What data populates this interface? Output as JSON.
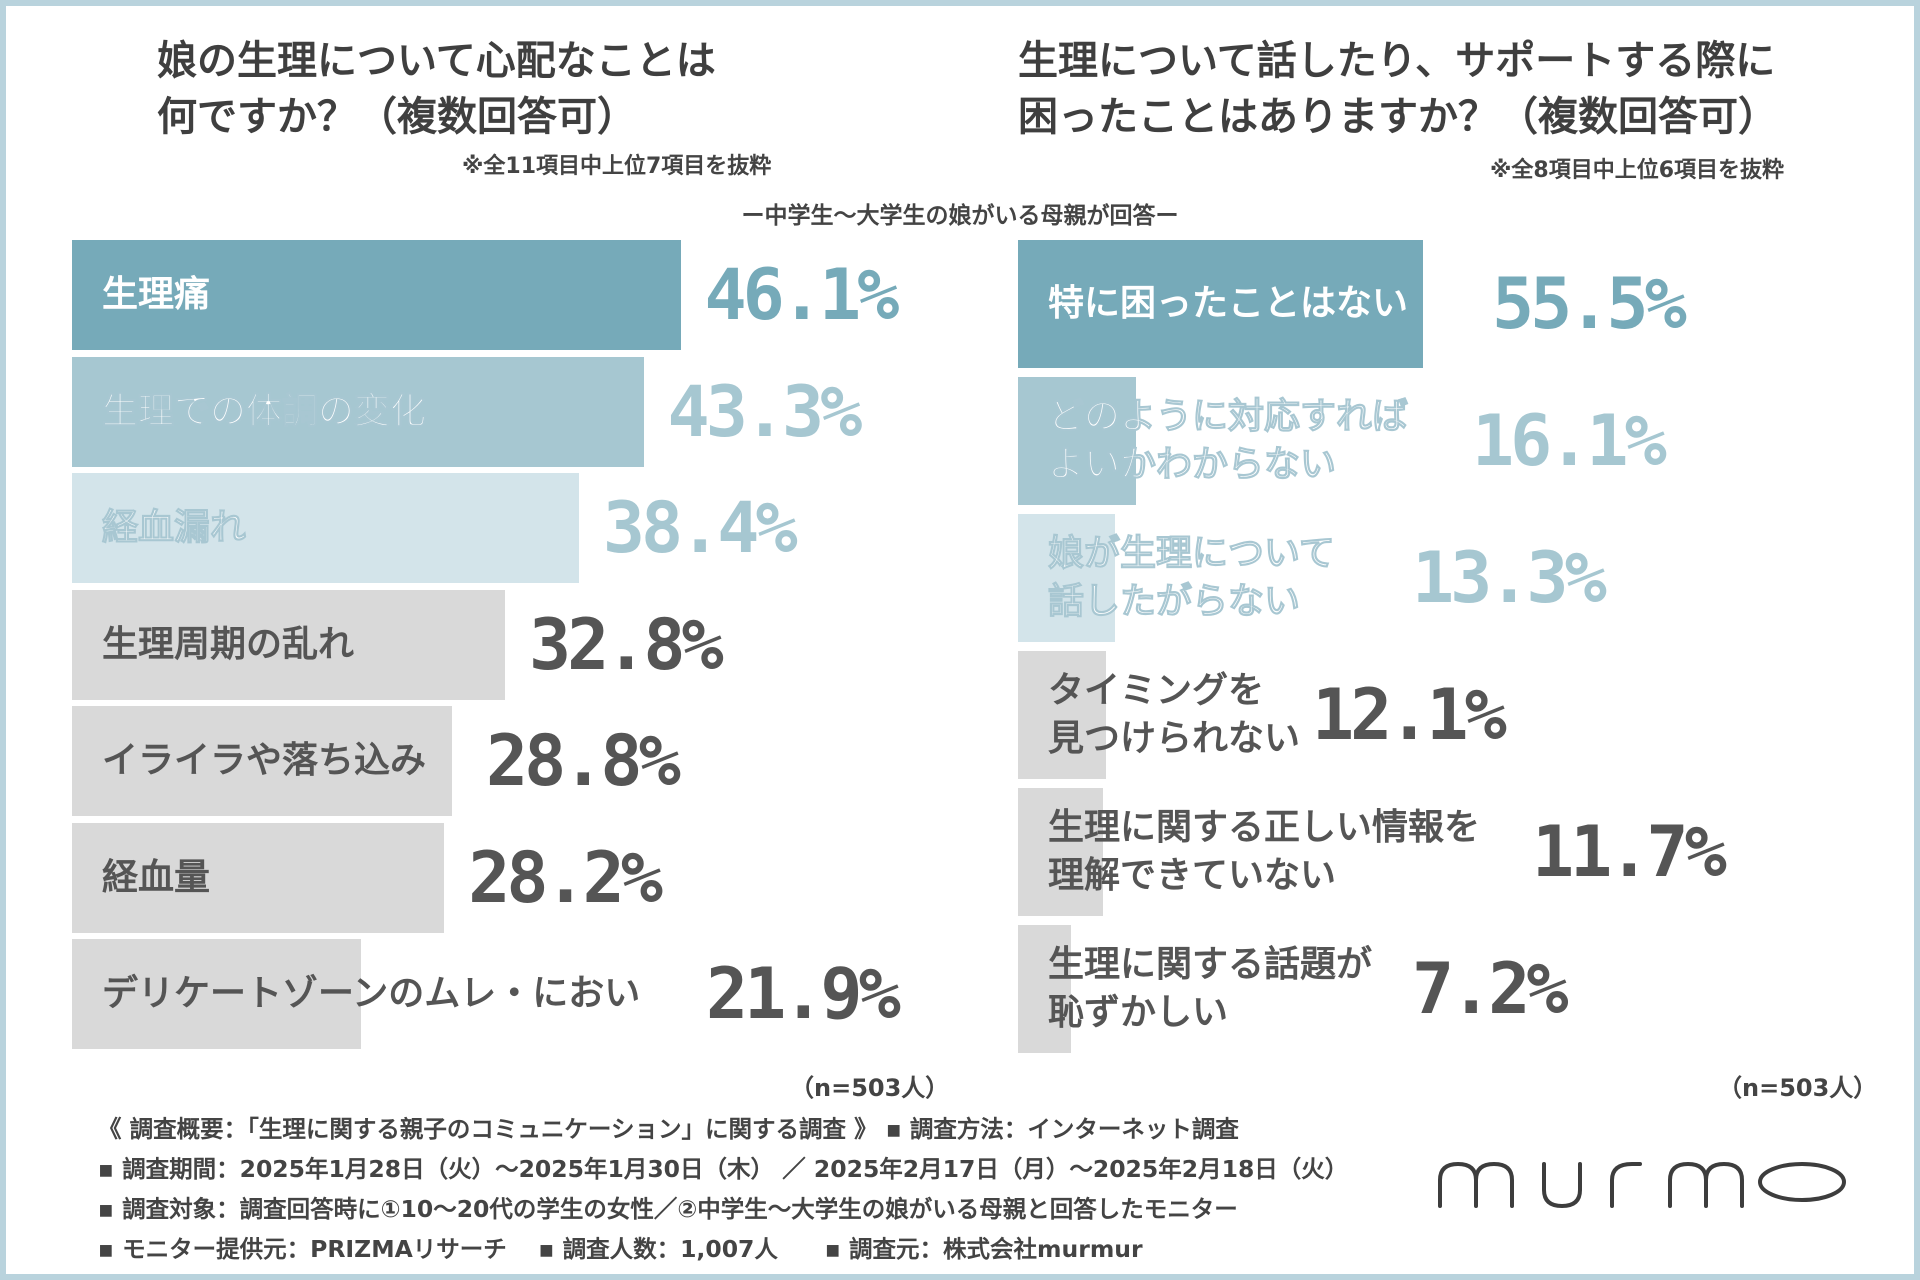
{
  "center_caption": "ー中学生〜大学生の娘がいる母親が回答ー",
  "left": {
    "title_line1": "娘の生理について心配なことは",
    "title_line2": "何ですか？（複数回答可）",
    "note": "※全11項目中上位7項目を抜粋",
    "n_label": "（n=503人）"
  },
  "right": {
    "title_line1": "生理について話したり、サポートする際に",
    "title_line2": "困ったことはありますか？（複数回答可）",
    "note": "※全8項目中上位6項目を抜粋",
    "n_label": "（n=503人）"
  },
  "chart_data": [
    {
      "type": "bar",
      "orientation": "horizontal",
      "title": "娘の生理について心配なことは何ですか？（複数回答可）",
      "unit": "%",
      "categories": [
        "生理痛",
        "生理での体調の変化",
        "経血漏れ",
        "生理周期の乱れ",
        "イライラや落ち込み",
        "経血量",
        "デリケートゾーンのムレ・におい"
      ],
      "values": [
        46.1,
        43.3,
        38.4,
        32.8,
        28.8,
        28.2,
        21.9
      ],
      "value_labels": [
        "46.1%",
        "43.3%",
        "38.4%",
        "32.8%",
        "28.8%",
        "28.2%",
        "21.9%"
      ],
      "bar_colors": [
        "#76aab9",
        "#a6c7d1",
        "#d3e4ea",
        "#d9d9d9",
        "#d9d9d9",
        "#d9d9d9",
        "#d9d9d9"
      ],
      "label_colors": [
        "#ffffff",
        "#ffffff",
        "#ffffff",
        "#555555",
        "#555555",
        "#555555",
        "#555555"
      ],
      "value_colors": [
        "#76aab9",
        "#a6c7d1",
        "#a6c7d1",
        "#555555",
        "#555555",
        "#555555",
        "#555555"
      ],
      "xlim": [
        0,
        100
      ]
    },
    {
      "type": "bar",
      "orientation": "horizontal",
      "title": "生理について話したり、サポートする際に困ったことはありますか？（複数回答可）",
      "unit": "%",
      "categories": [
        "特に困ったことはない",
        "どのように対応すれば|よいかわからない",
        "娘が生理について|話したがらない",
        "タイミングを|見つけられない",
        "生理に関する正しい情報を|理解できていない",
        "生理に関する話題が|恥ずかしい"
      ],
      "values": [
        55.5,
        16.1,
        13.3,
        12.1,
        11.7,
        7.2
      ],
      "value_labels": [
        "55.5%",
        "16.1%",
        "13.3%",
        "12.1%",
        "11.7%",
        "7.2%"
      ],
      "bar_colors": [
        "#76aab9",
        "#a6c7d1",
        "#d3e4ea",
        "#d9d9d9",
        "#d9d9d9",
        "#d9d9d9"
      ],
      "label_colors": [
        "#ffffff",
        "#ffffff",
        "#ffffff",
        "#555555",
        "#555555",
        "#555555"
      ],
      "value_colors": [
        "#76aab9",
        "#a6c7d1",
        "#a6c7d1",
        "#555555",
        "#555555",
        "#555555"
      ],
      "xlim": [
        0,
        100
      ]
    }
  ],
  "footer": {
    "line1": "《 調査概要：「生理に関する親子のコミュニケーション」に関する調査 》 ▪ 調査方法：インターネット調査",
    "line2": "▪ 調査期間：2025年1月28日（火）〜2025年1月30日（木） ／ 2025年2月17日（月）〜2025年2月18日（火）",
    "line3": "▪ 調査対象：調査回答時に①10〜20代の学生の女性／②中学生〜大学生の娘がいる母親と回答したモニター",
    "line4": "▪ モニター提供元：PRIZMAリサーチ　 ▪ 調査人数：1,007人　　▪ 調査元：株式会社murmur"
  },
  "logo_text": "murmo",
  "brand_color": "#3d3d3d"
}
